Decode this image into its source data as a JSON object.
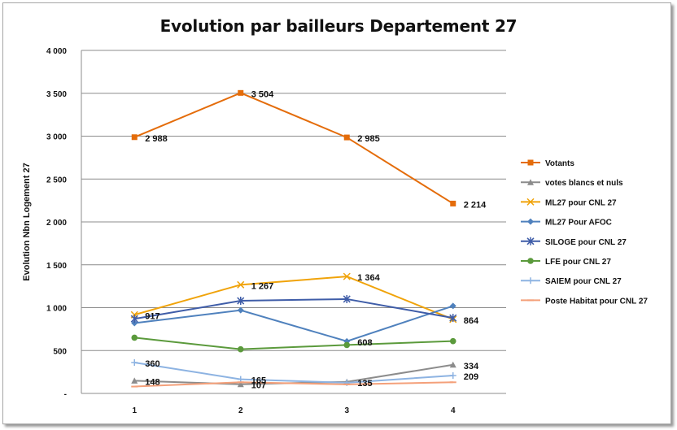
{
  "chart_data": {
    "type": "line",
    "title": "Evolution par bailleurs Departement 27",
    "xlabel": "",
    "ylabel": "Evolution Nbn Logement 27",
    "x": [
      "1",
      "2",
      "3",
      "4"
    ],
    "ylim": [
      0,
      4000
    ],
    "y_ticks": [
      "-",
      "500",
      "1 000",
      "1 500",
      "2 000",
      "2 500",
      "3 000",
      "3 500",
      "4 000"
    ],
    "grid": true,
    "legend_position": "right",
    "series": [
      {
        "name": "Votants",
        "color": "#e46c0a",
        "marker": "square",
        "values": [
          2988,
          3504,
          2985,
          2214
        ],
        "labels": [
          "2 988",
          "3 504",
          "2 985",
          "2 214"
        ]
      },
      {
        "name": "votes blancs et nuls",
        "color": "#8c8c8c",
        "marker": "triangle",
        "values": [
          148,
          107,
          135,
          334
        ],
        "labels": [
          "148",
          "107",
          "135",
          "334"
        ]
      },
      {
        "name": "ML27 pour CNL 27",
        "color": "#f0a30a",
        "marker": "x",
        "values": [
          917,
          1267,
          1364,
          864
        ],
        "labels": [
          "917",
          "1 267",
          "1 364",
          "864"
        ]
      },
      {
        "name": "ML27 Pour AFOC",
        "color": "#4f81bd",
        "marker": "diamond",
        "values": [
          820,
          970,
          608,
          1020
        ],
        "labels": [
          "",
          "",
          "608",
          ""
        ]
      },
      {
        "name": "SILOGE pour CNL 27",
        "color": "#3f5da8",
        "marker": "star",
        "values": [
          870,
          1080,
          1100,
          880
        ],
        "labels": [
          "",
          "",
          "",
          ""
        ]
      },
      {
        "name": "LFE pour CNL 27",
        "color": "#5b9a3c",
        "marker": "circle",
        "values": [
          650,
          515,
          565,
          610
        ],
        "labels": [
          "",
          "",
          "",
          ""
        ]
      },
      {
        "name": "SAIEM pour CNL 27",
        "color": "#8db3e2",
        "marker": "plus",
        "values": [
          360,
          165,
          125,
          209
        ],
        "labels": [
          "360",
          "165",
          "",
          "209"
        ]
      },
      {
        "name": "Poste Habitat pour CNL 27",
        "color": "#f4a07a",
        "marker": "dash",
        "values": [
          80,
          130,
          105,
          130
        ],
        "labels": [
          "",
          "",
          "",
          ""
        ]
      }
    ]
  }
}
